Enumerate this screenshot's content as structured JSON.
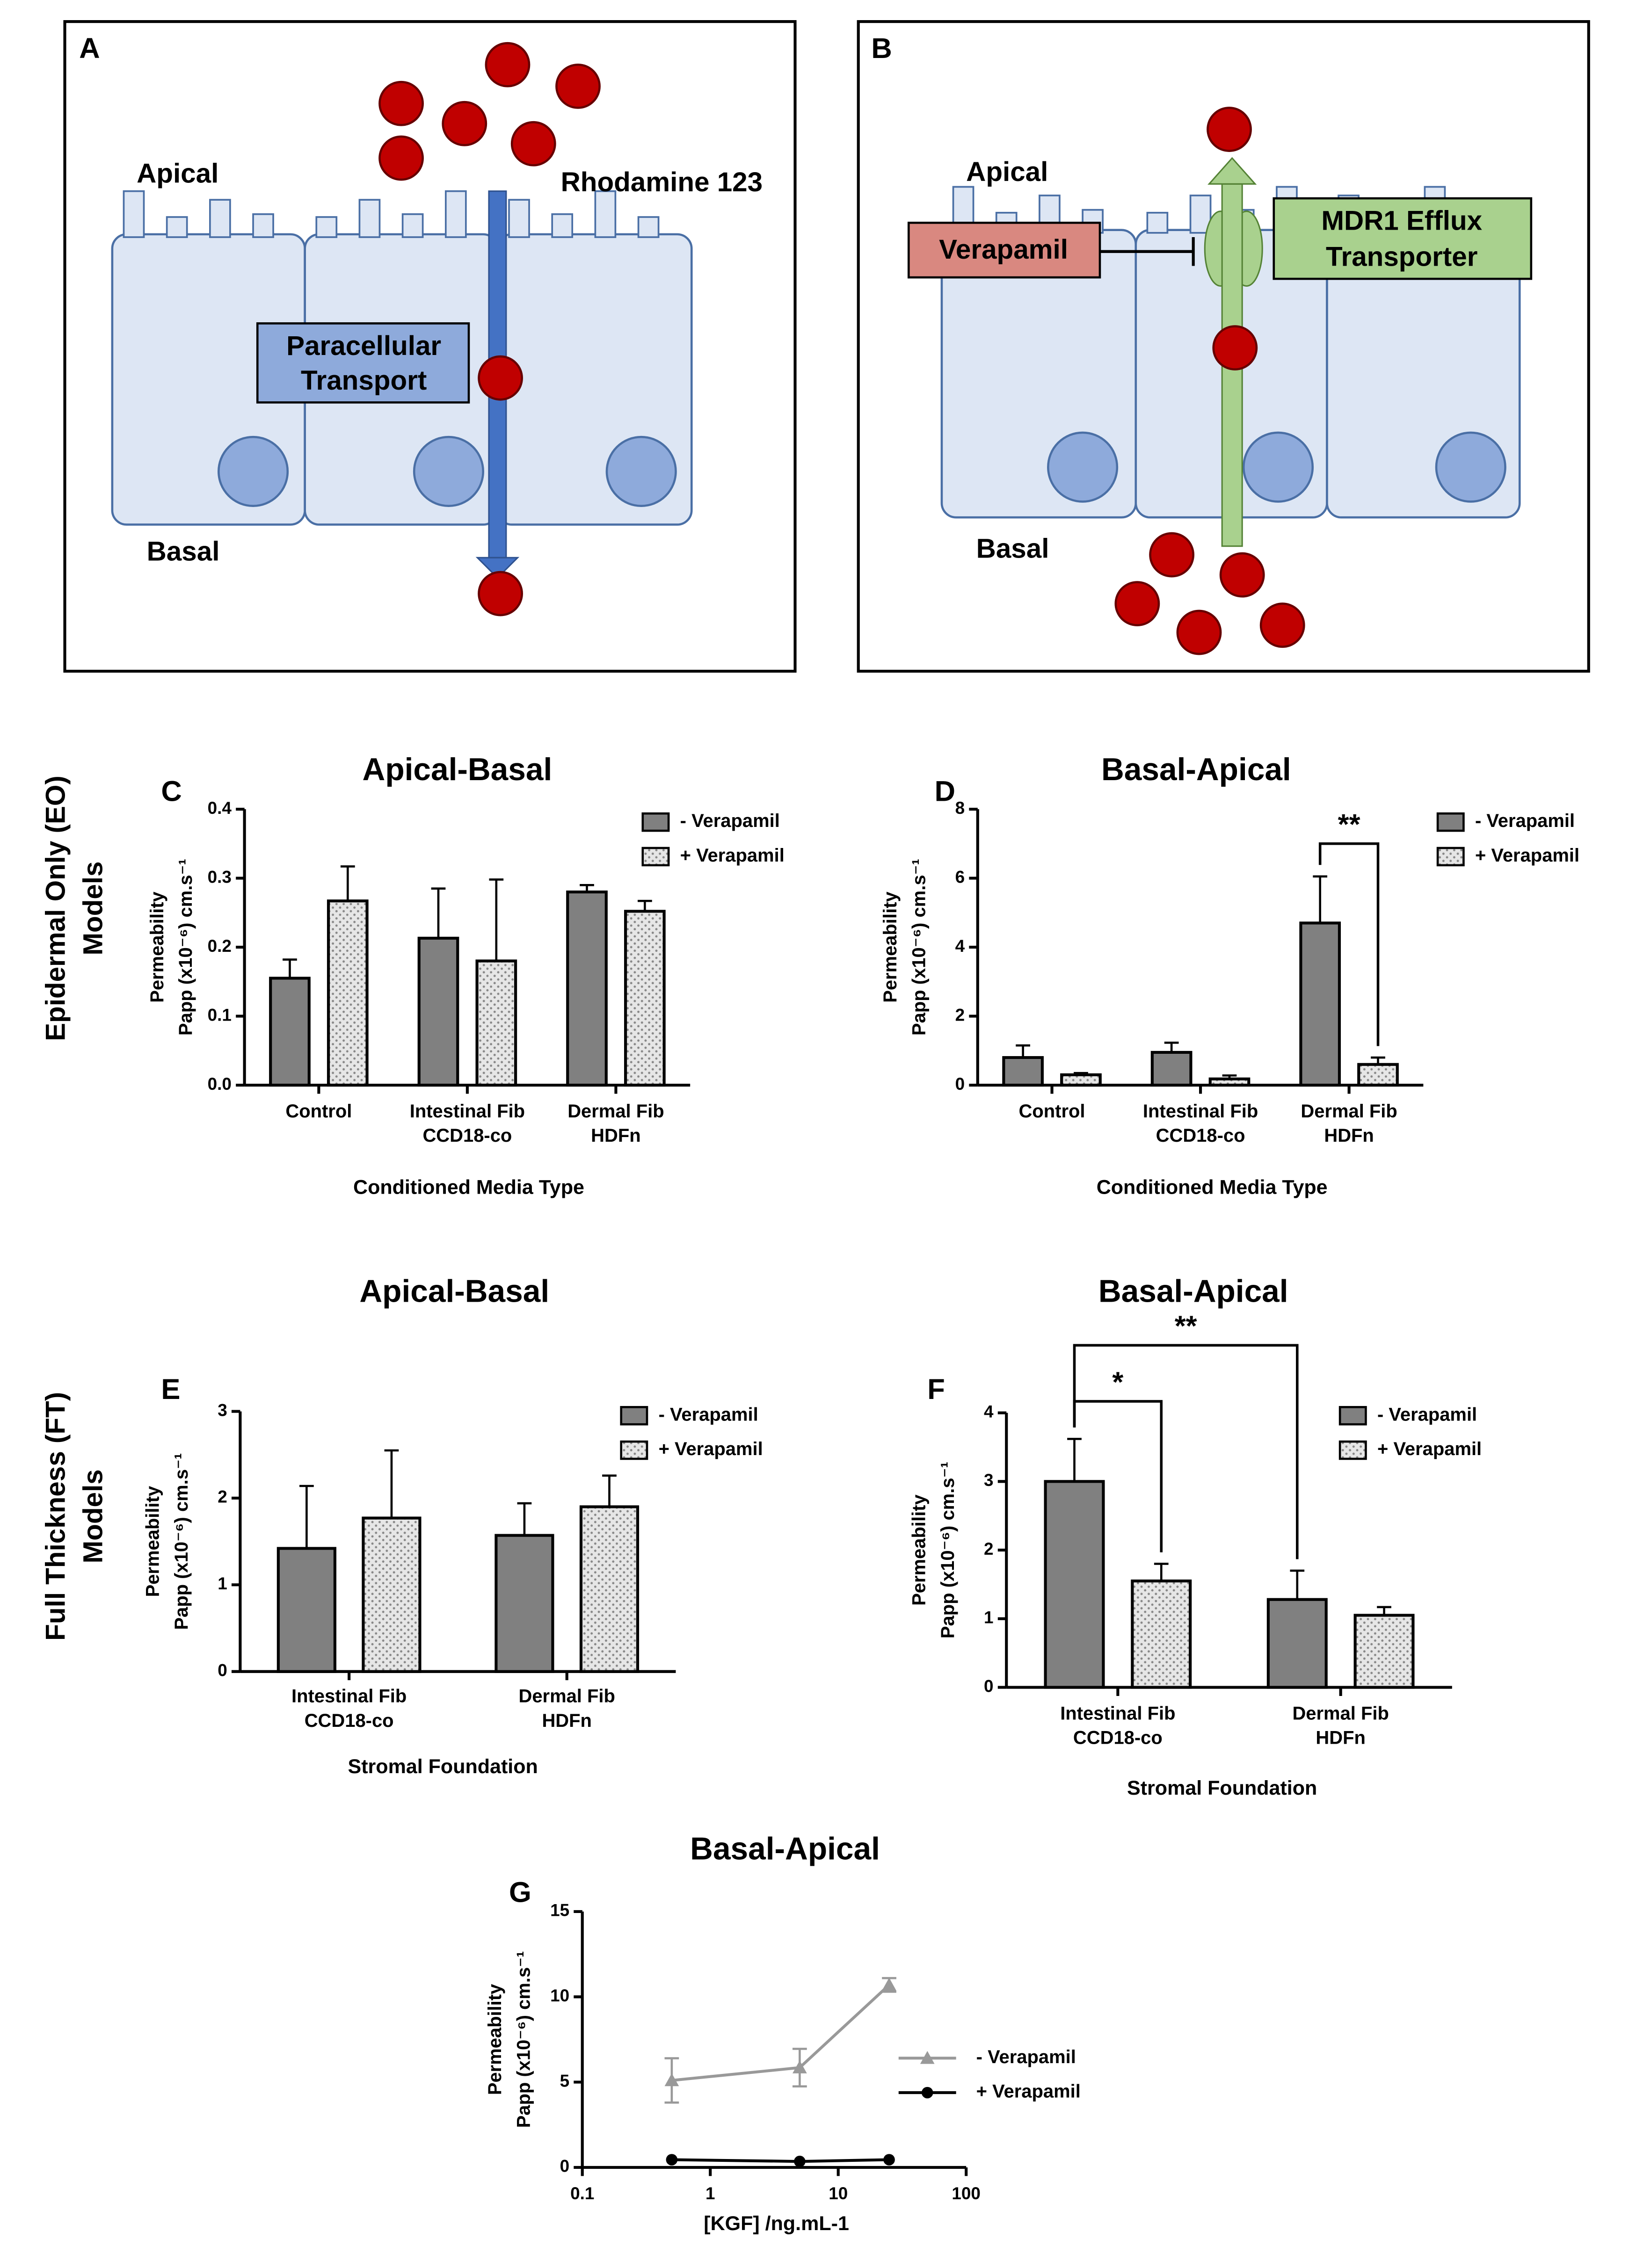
{
  "panels": {
    "A": {
      "label": "A",
      "apical": "Apical",
      "basal": "Basal",
      "compound": "Rhodamine 123",
      "route": [
        "Paracellular",
        "Transport"
      ]
    },
    "B": {
      "label": "B",
      "apical": "Apical",
      "basal": "Basal",
      "inhibitor": "Verapamil",
      "transporter": [
        "MDR1 Efflux",
        "Transporter"
      ]
    }
  },
  "row_labels": [
    [
      "Epidermal Only (EO)",
      "Models"
    ],
    [
      "Full Thickness (FT)",
      "Models"
    ]
  ],
  "chart_data": [
    {
      "type": "bar",
      "panel": "C",
      "title": "Apical-Basal",
      "xlabel": "Conditioned Media Type",
      "ylabel": [
        "Permeability",
        "Papp (x10⁻⁶) cm.s⁻¹"
      ],
      "categories": [
        [
          "Control"
        ],
        [
          "Intestinal Fib",
          "CCD18-co"
        ],
        [
          "Dermal Fib",
          "HDFn"
        ]
      ],
      "series": [
        {
          "name": "- Verapamil",
          "color": "#808080",
          "values": [
            0.155,
            0.213,
            0.28
          ],
          "errors": [
            0.027,
            0.072,
            0.01
          ]
        },
        {
          "name": "+ Verapamil",
          "color": "#d9d9d9",
          "pattern": "dots",
          "values": [
            0.267,
            0.18,
            0.252
          ],
          "errors": [
            0.05,
            0.118,
            0.015
          ]
        }
      ],
      "ylim": [
        0,
        0.4
      ],
      "yticks": [
        {
          "value": 0,
          "label": "0.0"
        },
        0.1,
        0.2,
        0.3,
        0.4
      ]
    },
    {
      "type": "bar",
      "panel": "D",
      "title": "Basal-Apical",
      "xlabel": "Conditioned Media Type",
      "ylabel": [
        "Permeability",
        "Papp (x10⁻⁶) cm.s⁻¹"
      ],
      "categories": [
        [
          "Control"
        ],
        [
          "Intestinal Fib",
          "CCD18-co"
        ],
        [
          "Dermal Fib",
          "HDFn"
        ]
      ],
      "series": [
        {
          "name": "- Verapamil",
          "color": "#808080",
          "values": [
            0.8,
            0.95,
            4.7
          ],
          "errors": [
            0.35,
            0.28,
            1.35
          ]
        },
        {
          "name": "+ Verapamil",
          "color": "#d9d9d9",
          "pattern": "dots",
          "values": [
            0.3,
            0.18,
            0.6
          ],
          "errors": [
            0.05,
            0.1,
            0.2
          ]
        }
      ],
      "ylim": [
        0,
        8
      ],
      "yticks": [
        0,
        2,
        4,
        6,
        8
      ],
      "annotations": [
        {
          "text": "**"
        }
      ]
    },
    {
      "type": "bar",
      "panel": "E",
      "title": "Apical-Basal",
      "xlabel": "Stromal Foundation",
      "ylabel": [
        "Permeability",
        "Papp (x10⁻⁶) cm.s⁻¹"
      ],
      "categories": [
        [
          "Intestinal Fib",
          "CCD18-co"
        ],
        [
          "Dermal Fib",
          "HDFn"
        ]
      ],
      "series": [
        {
          "name": "- Verapamil",
          "color": "#808080",
          "values": [
            1.42,
            1.57
          ],
          "errors": [
            0.72,
            0.37
          ]
        },
        {
          "name": "+ Verapamil",
          "color": "#d9d9d9",
          "pattern": "dots",
          "values": [
            1.77,
            1.9
          ],
          "errors": [
            0.78,
            0.36
          ]
        }
      ],
      "ylim": [
        0,
        3
      ],
      "yticks": [
        0,
        1,
        2,
        3
      ]
    },
    {
      "type": "bar",
      "panel": "F",
      "title": "Basal-Apical",
      "xlabel": "Stromal Foundation",
      "ylabel": [
        "Permeability",
        "Papp (x10⁻⁶) cm.s⁻¹"
      ],
      "categories": [
        [
          "Intestinal Fib",
          "CCD18-co"
        ],
        [
          "Dermal Fib",
          "HDFn"
        ]
      ],
      "series": [
        {
          "name": "- Verapamil",
          "color": "#808080",
          "values": [
            3.0,
            1.28
          ],
          "errors": [
            0.62,
            0.42
          ]
        },
        {
          "name": "+ Verapamil",
          "color": "#d9d9d9",
          "pattern": "dots",
          "values": [
            1.55,
            1.05
          ],
          "errors": [
            0.25,
            0.12
          ]
        }
      ],
      "ylim": [
        0,
        4
      ],
      "yticks": [
        0,
        1,
        2,
        3,
        4
      ],
      "annotations": [
        {
          "text": "*"
        },
        {
          "text": "**"
        }
      ]
    },
    {
      "type": "line",
      "panel": "G",
      "title": "Basal-Apical",
      "xlabel": "[KGF] /ng.mL-1",
      "ylabel": [
        "Permeability",
        "Papp (x10⁻⁶) cm.s⁻¹"
      ],
      "x": [
        0.5,
        5,
        25
      ],
      "xscale": "log",
      "series": [
        {
          "name": "- Verapamil",
          "color": "#999999",
          "marker": "triangle",
          "values": [
            5.1,
            5.85,
            10.7
          ],
          "errors": [
            1.3,
            1.1,
            0.4
          ]
        },
        {
          "name": "+ Verapamil",
          "color": "#000000",
          "marker": "circle",
          "values": [
            0.45,
            0.35,
            0.45
          ]
        }
      ],
      "xlim": [
        0.1,
        100
      ],
      "xticks": [
        0.1,
        1,
        10,
        100
      ],
      "ylim": [
        0,
        15
      ],
      "yticks": [
        0,
        5,
        10,
        15
      ]
    }
  ]
}
